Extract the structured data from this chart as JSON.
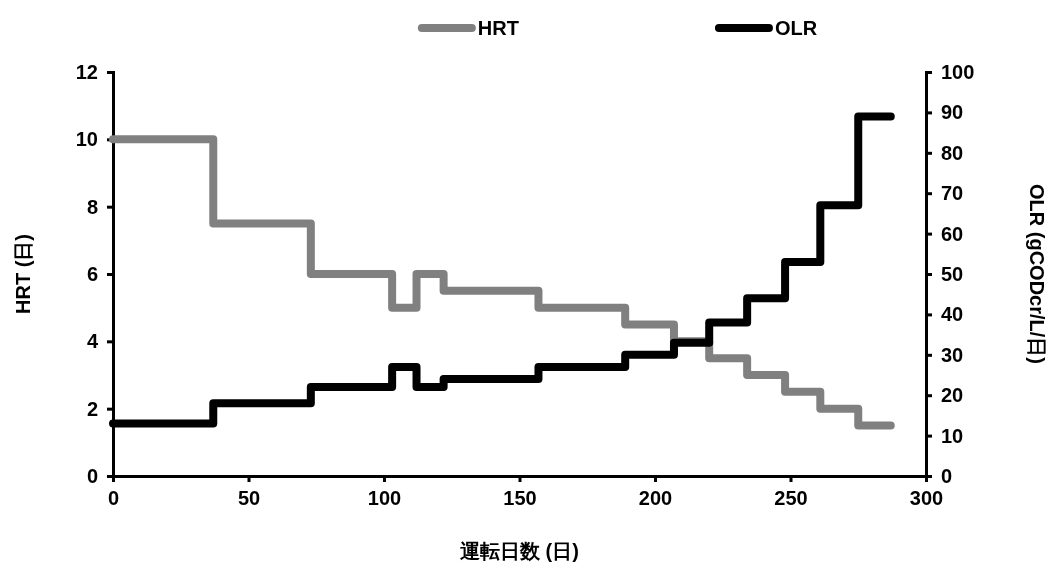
{
  "chart_data": {
    "type": "step",
    "xlabel": "運転日数 (日)",
    "ylabel": "HRT (日)",
    "y2label": "OLR (gCODcr/L/日)",
    "x": [
      0,
      37,
      73,
      103,
      112,
      122,
      157,
      189,
      207,
      220,
      234,
      248,
      261,
      275,
      287
    ],
    "series": [
      {
        "name": "HRT",
        "color": "#808080",
        "values": [
          10,
          7.5,
          6,
          5,
          6,
          5.5,
          5,
          4.5,
          4,
          3.5,
          3,
          2.5,
          2,
          1.5,
          1.5
        ]
      },
      {
        "name": "OLR",
        "color": "#000000",
        "axis": "y2",
        "values": [
          13,
          18,
          22,
          27,
          22,
          24,
          27,
          30,
          33,
          38,
          44,
          53,
          67,
          89,
          89
        ]
      }
    ],
    "xlim": [
      0,
      300
    ],
    "xticks": [
      0,
      50,
      100,
      150,
      200,
      250,
      300
    ],
    "ylim": [
      0,
      12
    ],
    "yticks": [
      0,
      2,
      4,
      6,
      8,
      10,
      12
    ],
    "y2lim": [
      0,
      100
    ],
    "y2ticks": [
      0,
      10,
      20,
      30,
      40,
      50,
      60,
      70,
      80,
      90,
      100
    ],
    "legend": "top",
    "grid": false,
    "marker": "none",
    "line_style": "solid"
  }
}
